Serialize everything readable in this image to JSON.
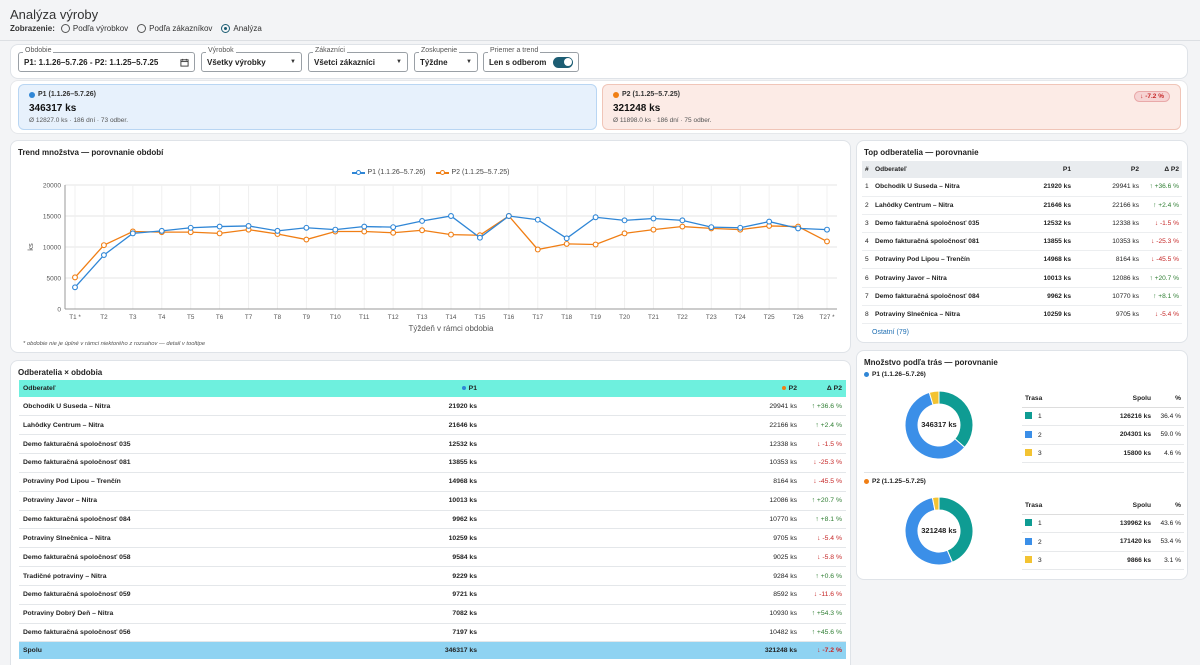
{
  "header": {
    "title": "Analýza výroby",
    "modes_label": "Zobrazenie:",
    "modes": [
      "Podľa výrobkov",
      "Podľa zákazníkov",
      "Analýza"
    ],
    "active_mode": 2
  },
  "filters": {
    "period": {
      "label": "Obdobie",
      "value": "P1: 1.1.26–5.7.26 - P2: 1.1.25–5.7.25"
    },
    "product": {
      "label": "Výrobok",
      "value": "Všetky výrobky"
    },
    "customers": {
      "label": "Zákazníci",
      "value": "Všetci zákazníci"
    },
    "grouping": {
      "label": "Zoskupenie",
      "value": "Týždne"
    },
    "avg": {
      "label": "Priemer a trend",
      "value": "Len s odberom",
      "on": true
    }
  },
  "colors": {
    "p1": "#2f86d6",
    "p2": "#f07e14",
    "p1_bg": "#e7f1fc",
    "p2_bg": "#fcebe6",
    "teal": "#0f9c93",
    "blue": "#3b8fe8",
    "yellow": "#f3c332"
  },
  "summary": {
    "p1": {
      "label": "P1 (1.1.26–5.7.26)",
      "total": "346317 ks",
      "meta": "Ø 12827.0 ks · 186 dní · 73 odber."
    },
    "p2": {
      "label": "P2 (1.1.25–5.7.25)",
      "total": "321248 ks",
      "meta": "Ø 11898.0 ks · 186 dní · 75 odber.",
      "badge": "↓ -7.2 %"
    }
  },
  "trend": {
    "title": "Trend množstva — porovnanie období",
    "note": "* obdobie nie je úplné v rámci niektorého z rozsahov — detail v tooltipe"
  },
  "chart_data": {
    "type": "line",
    "title": "Trend množstva — porovnanie období",
    "xlabel": "Týždeň v rámci obdobia",
    "ylabel": "ks",
    "ylim": [
      0,
      20000
    ],
    "yticks": [
      0,
      5000,
      10000,
      15000,
      20000
    ],
    "categories": [
      "T1 *",
      "T2",
      "T3",
      "T4",
      "T5",
      "T6",
      "T7",
      "T8",
      "T9",
      "T10",
      "T11",
      "T12",
      "T13",
      "T14",
      "T15",
      "T16",
      "T17",
      "T18",
      "T19",
      "T20",
      "T21",
      "T22",
      "T23",
      "T24",
      "T25",
      "T26",
      "T27 *"
    ],
    "series": [
      {
        "name": "P1 (1.1.26–5.7.26)",
        "values": [
          3500,
          8700,
          12200,
          12600,
          13100,
          13300,
          13400,
          12600,
          13100,
          12800,
          13300,
          13200,
          14200,
          15000,
          11500,
          15000,
          14400,
          11400,
          14800,
          14300,
          14600,
          14300,
          13200,
          13100,
          14100,
          13000,
          12800
        ]
      },
      {
        "name": "P2 (1.1.25–5.7.25)",
        "values": [
          5100,
          10300,
          12500,
          12400,
          12400,
          12200,
          12800,
          12100,
          11200,
          12500,
          12500,
          12300,
          12700,
          12000,
          11900,
          15000,
          9600,
          10500,
          10400,
          12200,
          12800,
          13300,
          13000,
          12800,
          13400,
          13300,
          10900
        ]
      }
    ],
    "legend": "top",
    "grid": true
  },
  "top": {
    "title": "Top odberatelia — porovnanie",
    "headers": [
      "#",
      "Odberateľ",
      "P1",
      "P2",
      "Δ P2"
    ],
    "rows": [
      {
        "n": "1",
        "name": "Obchodík U Suseda – Nitra",
        "p1": "21920 ks",
        "p2": "29941 ks",
        "d": "↑ +36.6 %",
        "up": true
      },
      {
        "n": "2",
        "name": "Lahôdky Centrum – Nitra",
        "p1": "21646 ks",
        "p2": "22166 ks",
        "d": "↑ +2.4 %",
        "up": true
      },
      {
        "n": "3",
        "name": "Demo fakturačná spoločnosť 035",
        "p1": "12532 ks",
        "p2": "12338 ks",
        "d": "↓ -1.5 %",
        "up": false
      },
      {
        "n": "4",
        "name": "Demo fakturačná spoločnosť 081",
        "p1": "13855 ks",
        "p2": "10353 ks",
        "d": "↓ -25.3 %",
        "up": false
      },
      {
        "n": "5",
        "name": "Potraviny Pod Lipou – Trenčín",
        "p1": "14968 ks",
        "p2": "8164 ks",
        "d": "↓ -45.5 %",
        "up": false
      },
      {
        "n": "6",
        "name": "Potraviny Javor – Nitra",
        "p1": "10013 ks",
        "p2": "12086 ks",
        "d": "↑ +20.7 %",
        "up": true
      },
      {
        "n": "7",
        "name": "Demo fakturačná spoločnosť 084",
        "p1": "9962 ks",
        "p2": "10770 ks",
        "d": "↑ +8.1 %",
        "up": true
      },
      {
        "n": "8",
        "name": "Potraviny Slnečnica – Nitra",
        "p1": "10259 ks",
        "p2": "9705 ks",
        "d": "↓ -5.4 %",
        "up": false
      }
    ],
    "other": "Ostatní (79)"
  },
  "main": {
    "title": "Odberatelia × obdobia",
    "headers": [
      "Odberateľ",
      "P1",
      "P2",
      "Δ P2"
    ],
    "rows": [
      {
        "name": "Obchodík U Suseda – Nitra",
        "p1": "21920 ks",
        "p2": "29941 ks",
        "d": "↑ +36.6 %",
        "up": true
      },
      {
        "name": "Lahôdky Centrum – Nitra",
        "p1": "21646 ks",
        "p2": "22166 ks",
        "d": "↑ +2.4 %",
        "up": true
      },
      {
        "name": "Demo fakturačná spoločnosť 035",
        "p1": "12532 ks",
        "p2": "12338 ks",
        "d": "↓ -1.5 %",
        "up": false
      },
      {
        "name": "Demo fakturačná spoločnosť 081",
        "p1": "13855 ks",
        "p2": "10353 ks",
        "d": "↓ -25.3 %",
        "up": false
      },
      {
        "name": "Potraviny Pod Lipou – Trenčín",
        "p1": "14968 ks",
        "p2": "8164 ks",
        "d": "↓ -45.5 %",
        "up": false
      },
      {
        "name": "Potraviny Javor – Nitra",
        "p1": "10013 ks",
        "p2": "12086 ks",
        "d": "↑ +20.7 %",
        "up": true
      },
      {
        "name": "Demo fakturačná spoločnosť 084",
        "p1": "9962 ks",
        "p2": "10770 ks",
        "d": "↑ +8.1 %",
        "up": true
      },
      {
        "name": "Potraviny Slnečnica – Nitra",
        "p1": "10259 ks",
        "p2": "9705 ks",
        "d": "↓ -5.4 %",
        "up": false
      },
      {
        "name": "Demo fakturačná spoločnosť 058",
        "p1": "9584 ks",
        "p2": "9025 ks",
        "d": "↓ -5.8 %",
        "up": false
      },
      {
        "name": "Tradičné potraviny – Nitra",
        "p1": "9229 ks",
        "p2": "9284 ks",
        "d": "↑ +0.6 %",
        "up": true
      },
      {
        "name": "Demo fakturačná spoločnosť 059",
        "p1": "9721 ks",
        "p2": "8592 ks",
        "d": "↓ -11.6 %",
        "up": false
      },
      {
        "name": "Potraviny Dobrý Deň – Nitra",
        "p1": "7082 ks",
        "p2": "10930 ks",
        "d": "↑ +54.3 %",
        "up": true
      },
      {
        "name": "Demo fakturačná spoločnosť 056",
        "p1": "7197 ks",
        "p2": "10482 ks",
        "d": "↑ +45.6 %",
        "up": true
      }
    ],
    "footer": {
      "name": "Spolu",
      "p1": "346317 ks",
      "p2": "321248 ks",
      "d": "↓ -7.2 %"
    }
  },
  "routes": {
    "title": "Množstvo podľa trás — porovnanie",
    "headers": [
      "Trasa",
      "Spolu",
      "%"
    ],
    "p1": {
      "label": "P1 (1.1.26–5.7.26)",
      "center": "346317 ks",
      "rows": [
        {
          "t": "1",
          "s": "126216 ks",
          "p": "36.4 %",
          "v": 36.4
        },
        {
          "t": "2",
          "s": "204301 ks",
          "p": "59.0 %",
          "v": 59.0
        },
        {
          "t": "3",
          "s": "15800 ks",
          "p": "4.6 %",
          "v": 4.6
        }
      ]
    },
    "p2": {
      "label": "P2 (1.1.25–5.7.25)",
      "center": "321248 ks",
      "rows": [
        {
          "t": "1",
          "s": "139962 ks",
          "p": "43.6 %",
          "v": 43.6
        },
        {
          "t": "2",
          "s": "171420 ks",
          "p": "53.4 %",
          "v": 53.4
        },
        {
          "t": "3",
          "s": "9866 ks",
          "p": "3.1 %",
          "v": 3.1
        }
      ]
    }
  }
}
